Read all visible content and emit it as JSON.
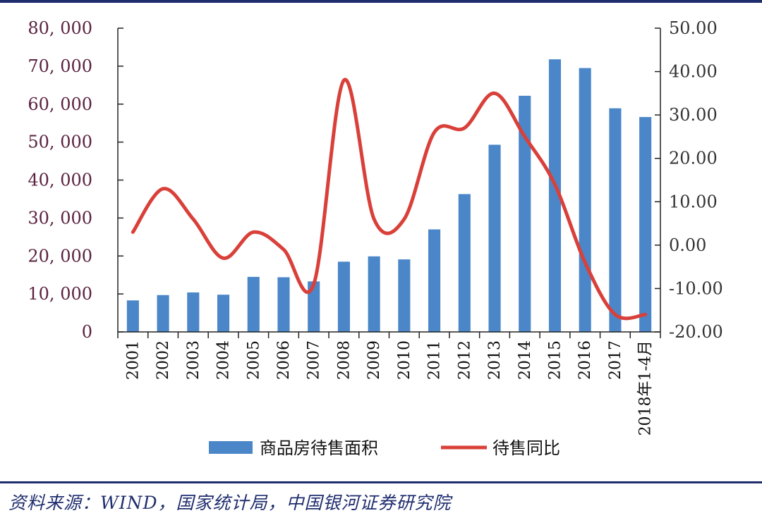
{
  "chart_data": {
    "type": "bar",
    "categories": [
      "2001",
      "2002",
      "2003",
      "2004",
      "2005",
      "2006",
      "2007",
      "2008",
      "2009",
      "2010",
      "2011",
      "2012",
      "2013",
      "2014",
      "2015",
      "2016",
      "2017",
      "2018年1-4月"
    ],
    "series": [
      {
        "name": "商品房待售面积",
        "type": "bar",
        "axis": "left",
        "color": "#4a86c8",
        "values": [
          8300,
          9700,
          10400,
          9800,
          14500,
          14400,
          13300,
          18500,
          19900,
          19100,
          27000,
          36300,
          49300,
          62200,
          71800,
          69500,
          58900,
          56600
        ]
      },
      {
        "name": "待售同比",
        "type": "line",
        "axis": "right",
        "color": "#d9403a",
        "values": [
          3,
          13,
          6,
          -3,
          3,
          -1,
          -9,
          38,
          6,
          6,
          26,
          27,
          35,
          25,
          14,
          -4,
          -16,
          -16
        ]
      }
    ],
    "y_left": {
      "min": 0,
      "max": 80000,
      "step": 10000,
      "tick_labels": [
        "0",
        "10, 000",
        "20, 000",
        "30, 000",
        "40, 000",
        "50, 000",
        "60, 000",
        "70, 000",
        "80, 000"
      ]
    },
    "y_right": {
      "min": -20,
      "max": 50,
      "step": 10,
      "tick_labels": [
        "-20.00",
        "-10.00",
        "0.00",
        "10.00",
        "20.00",
        "30.00",
        "40.00",
        "50.00"
      ]
    },
    "legend": {
      "placement": "bottom-center"
    },
    "grid": false
  },
  "source_text": "资料来源：WIND，国家统计局，中国银河证券研究院"
}
